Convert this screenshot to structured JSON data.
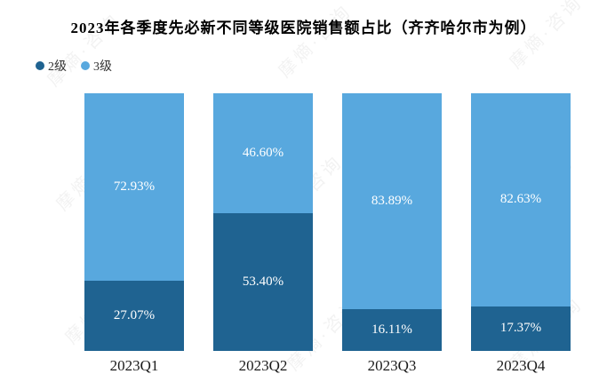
{
  "title": "2023年各季度先必新不同等级医院销售额占比（齐齐哈尔市为例）",
  "watermark": "摩熵·咨询",
  "colors": {
    "tier2": "#1f6391",
    "tier3": "#58a8de",
    "segment_label": "#ffffff",
    "background": "#ffffff",
    "title_text": "#000000"
  },
  "chart_data": {
    "type": "bar",
    "subtype": "stacked-100-percent",
    "title": "2023年各季度先必新不同等级医院销售额占比（齐齐哈尔市为例）",
    "categories": [
      "2023Q1",
      "2023Q2",
      "2023Q3",
      "2023Q4"
    ],
    "series": [
      {
        "name": "2级",
        "color": "#1f6391",
        "values": [
          27.07,
          53.4,
          16.11,
          17.37
        ]
      },
      {
        "name": "3级",
        "color": "#58a8de",
        "values": [
          72.93,
          46.6,
          83.89,
          82.63
        ]
      }
    ],
    "data_labels": {
      "tier2": [
        "27.07%",
        "53.40%",
        "16.11%",
        "17.37%"
      ],
      "tier3": [
        "72.93%",
        "46.60%",
        "83.89%",
        "82.63%"
      ]
    },
    "xlabel": "",
    "ylabel": "",
    "ylim": [
      0,
      100
    ],
    "grid": false,
    "axes_visible": false,
    "legend_position": "top-left",
    "stack_order_bottom_to_top": [
      "2级",
      "3级"
    ]
  }
}
